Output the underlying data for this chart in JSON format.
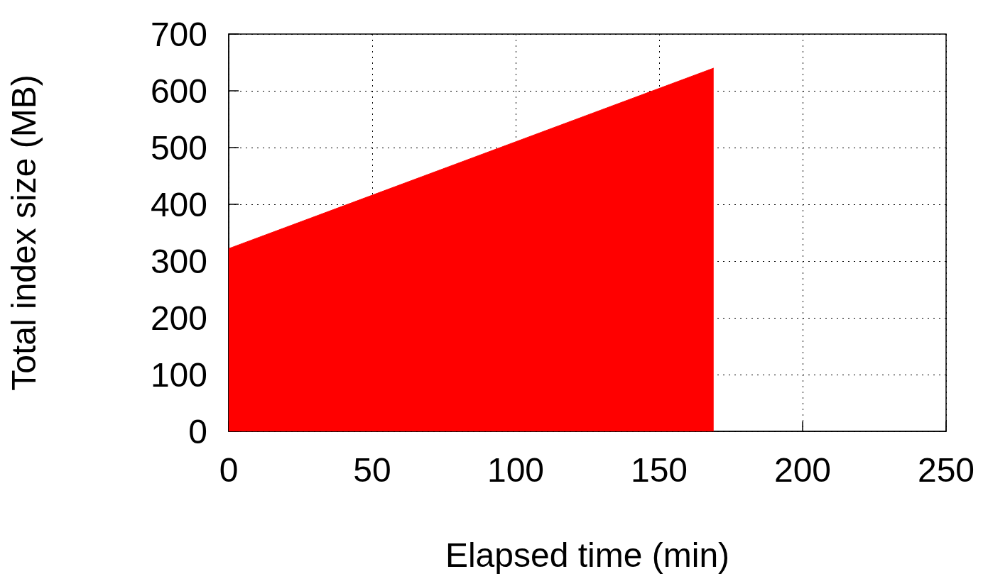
{
  "chart_data": {
    "type": "area",
    "xlabel": "Elapsed time (min)",
    "ylabel": "Total index size (MB)",
    "x": [
      0,
      169
    ],
    "values": [
      322,
      640
    ],
    "color": "#ff0000",
    "xlim": [
      0,
      250
    ],
    "xticks": [
      0,
      50,
      100,
      150,
      200,
      250
    ],
    "ylim": [
      0,
      700
    ],
    "yticks": [
      0,
      100,
      200,
      300,
      400,
      500,
      600,
      700
    ],
    "grid": true
  }
}
